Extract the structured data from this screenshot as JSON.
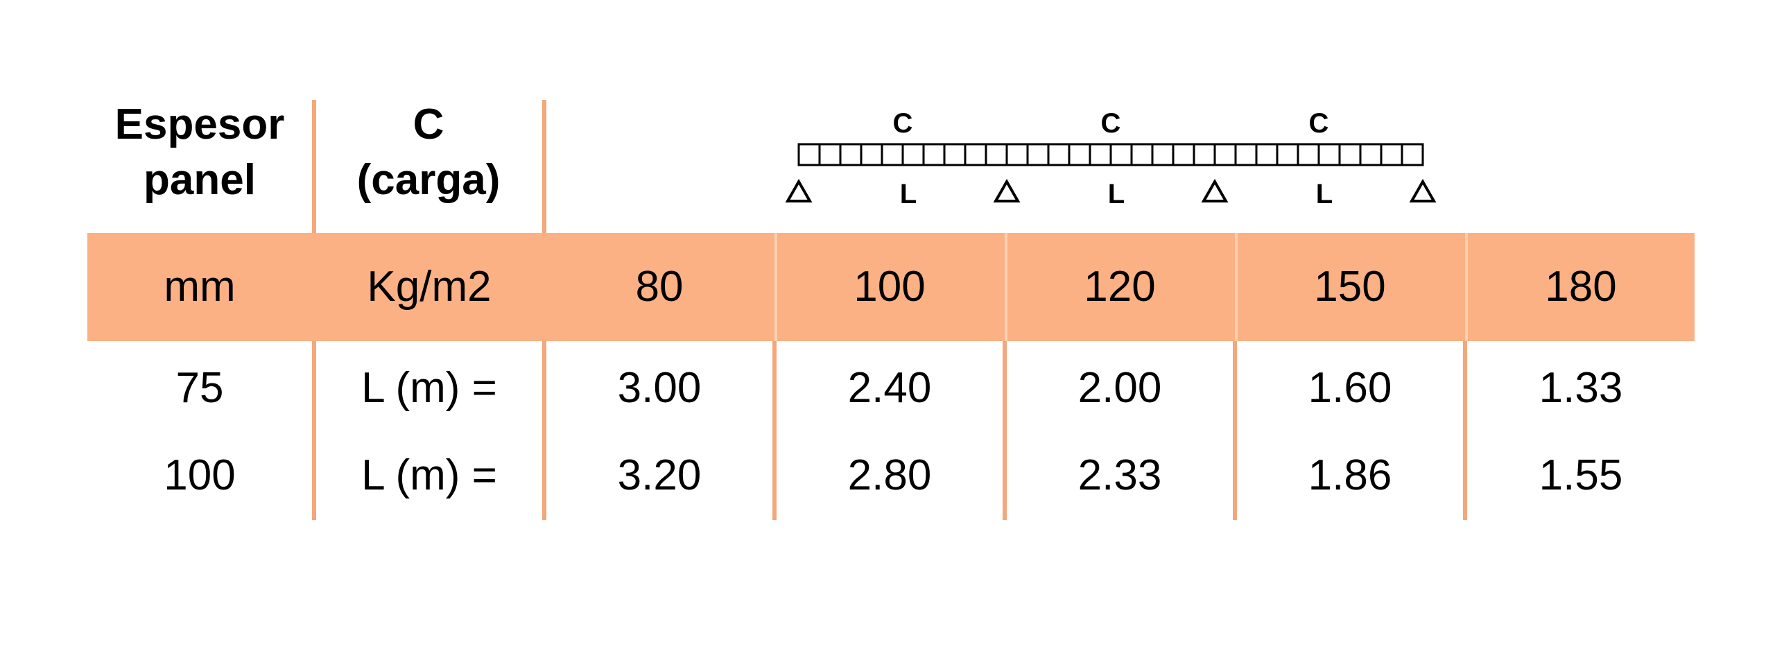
{
  "headers": {
    "col1": [
      "Espesor",
      "panel"
    ],
    "col2": [
      "C",
      "(carga)"
    ]
  },
  "diagram": {
    "load_labels": [
      "C",
      "C",
      "C"
    ],
    "span_labels": [
      "L",
      "L",
      "L"
    ],
    "supports": 4,
    "segments": 30
  },
  "units_row": {
    "col1": "mm",
    "col2": "Kg/m2",
    "loads": [
      "80",
      "100",
      "120",
      "150",
      "180"
    ]
  },
  "rows": [
    {
      "thickness": "75",
      "label": "L (m) =",
      "values": [
        "3.00",
        "2.40",
        "2.00",
        "1.60",
        "1.33"
      ]
    },
    {
      "thickness": "100",
      "label": "L (m) =",
      "values": [
        "3.20",
        "2.80",
        "2.33",
        "1.86",
        "1.55"
      ]
    }
  ],
  "colors": {
    "band": "#fbb184",
    "lines": "#f4a77a"
  }
}
